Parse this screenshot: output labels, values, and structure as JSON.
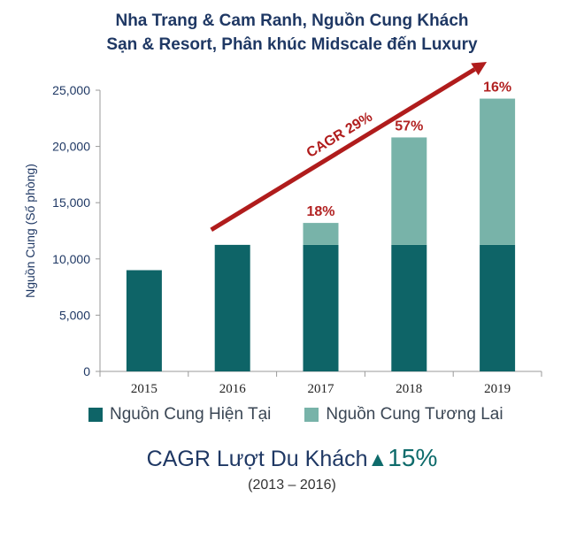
{
  "title_line1": "Nha Trang & Cam Ranh, Nguồn Cung Khách",
  "title_line2": "Sạn & Resort, Phân khúc Midscale đến Luxury",
  "colors": {
    "current": "#0e6467",
    "future": "#78b3a9",
    "text_red": "#b22222",
    "arrow": "#b01c1c",
    "title": "#1f3864"
  },
  "chart_data": {
    "type": "bar",
    "stacked": true,
    "categories": [
      "2015",
      "2016",
      "2017",
      "2018",
      "2019"
    ],
    "series": [
      {
        "name": "Nguồn Cung Hiện Tại",
        "values": [
          9000,
          11250,
          11250,
          11250,
          11250
        ]
      },
      {
        "name": "Nguồn Cung Tương Lai",
        "values": [
          0,
          0,
          1950,
          9550,
          13000
        ]
      }
    ],
    "ylabel": "Nguồn Cung (Số phòng)",
    "ylim": [
      0,
      25000
    ],
    "yticks": [
      0,
      5000,
      10000,
      15000,
      20000,
      25000
    ],
    "ytick_labels": [
      "0",
      "5,000",
      "10,000",
      "15,000",
      "20,000",
      "25,000"
    ],
    "growth_labels": [
      "",
      "",
      "18%",
      "57%",
      "16%"
    ],
    "trend_label": "CAGR 29%",
    "legend_position": "bottom",
    "grid": false
  },
  "visitor_label": "CAGR Lượt Du Khách",
  "visitor_triangle": "▲",
  "visitor_value": "15%",
  "visitor_period": "(2013 – 2016)"
}
